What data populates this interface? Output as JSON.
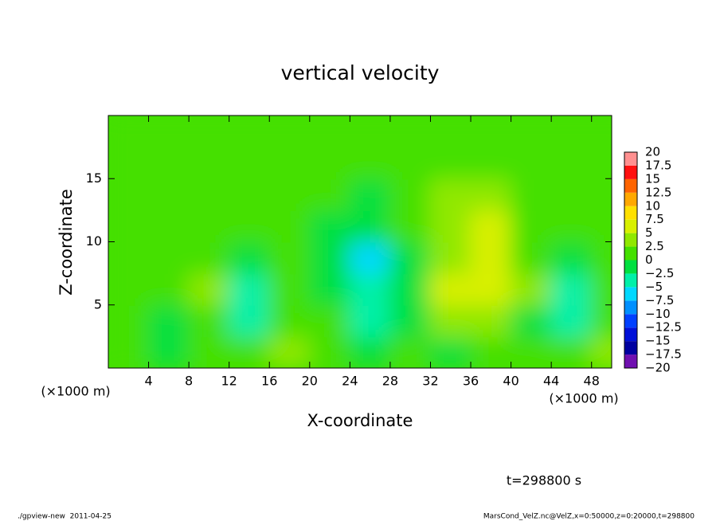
{
  "chart_data": {
    "type": "heatmap",
    "title": "vertical velocity",
    "xlabel": "X-coordinate",
    "ylabel": "Z-coordinate",
    "unit_label": "(×1000 m)",
    "xlim": [
      0,
      50
    ],
    "ylim": [
      0,
      20
    ],
    "xticks": [
      4,
      8,
      12,
      16,
      20,
      24,
      28,
      32,
      36,
      40,
      44,
      48
    ],
    "yticks": [
      5,
      10,
      15
    ],
    "x": [
      2,
      6,
      10,
      14,
      18,
      22,
      26,
      30,
      34,
      38,
      42,
      46,
      50
    ],
    "y": [
      1.25,
      3.75,
      6.25,
      8.75,
      11.25,
      13.75,
      16.25,
      18.75
    ],
    "z": [
      [
        1,
        -1,
        0,
        0,
        3,
        2,
        -1,
        0,
        -1,
        2,
        0,
        0,
        4
      ],
      [
        0,
        -2,
        2,
        -3,
        2,
        0,
        -3,
        -1,
        3,
        3,
        -1,
        -4,
        2
      ],
      [
        2,
        0,
        3,
        -4,
        0,
        -1,
        -5,
        -2,
        5,
        7,
        3,
        -3,
        0
      ],
      [
        0,
        0,
        0,
        -2,
        0,
        -2,
        -6,
        -1,
        4,
        6,
        2,
        -1,
        0
      ],
      [
        0,
        0,
        0,
        0,
        0,
        -1,
        -2,
        0,
        4,
        5,
        1,
        0,
        0
      ],
      [
        0,
        0,
        0,
        0,
        0,
        0,
        -1,
        0,
        4,
        3,
        0,
        0,
        0
      ],
      [
        0,
        0,
        0,
        0,
        0,
        0,
        0,
        0,
        2,
        1,
        0,
        0,
        0
      ],
      [
        0,
        0,
        0,
        0,
        0,
        0,
        0,
        0,
        0,
        0,
        0,
        0,
        0
      ]
    ],
    "levels": [
      {
        "value": -20,
        "label": "−20"
      },
      {
        "value": -17.5,
        "label": "−17.5"
      },
      {
        "value": -15,
        "label": "−15"
      },
      {
        "value": -12.5,
        "label": "−12.5"
      },
      {
        "value": -10,
        "label": "−10"
      },
      {
        "value": -7.5,
        "label": "−7.5"
      },
      {
        "value": -5,
        "label": "−5"
      },
      {
        "value": -2.5,
        "label": "−2.5"
      },
      0,
      2.5,
      5,
      7.5,
      10,
      12.5,
      15,
      17.5,
      20
    ],
    "colors": [
      "#7010b0",
      "#0000a0",
      "#0010d8",
      "#0040ff",
      "#0090ff",
      "#00d8ff",
      "#00f0a8",
      "#00e040",
      "#44e000",
      "#90e800",
      "#d8f000",
      "#ffe000",
      "#ffa800",
      "#ff6400",
      "#ff1010",
      "#ff9090"
    ],
    "time_label": "t=298800 s",
    "footer_left": "./gpview-new  2011-04-25",
    "footer_right": "MarsCond_VelZ.nc@VelZ,x=0:50000,z=0:20000,t=298800"
  }
}
